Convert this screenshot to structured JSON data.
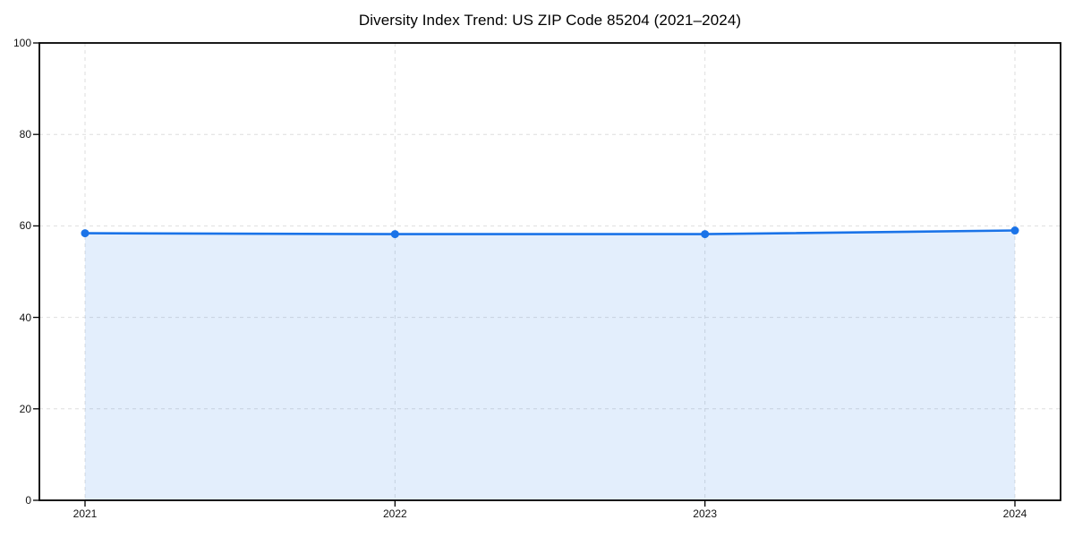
{
  "colors": {
    "line": "#1a73e8",
    "marker": "#1a73e8",
    "fill": "#1a73e8",
    "fill_opacity": 0.12,
    "grid": "#dedede",
    "axis": "#000000",
    "tick_text": "#141414",
    "background": "#ffffff"
  },
  "chart_data": {
    "type": "area",
    "title": "Diversity Index Trend: US ZIP Code 85204 (2021–2024)",
    "categories": [
      "2021",
      "2022",
      "2023",
      "2024"
    ],
    "series": [
      {
        "name": "Diversity Index",
        "values": [
          58.4,
          58.2,
          58.2,
          59.0
        ]
      }
    ],
    "xlabel": "",
    "ylabel": "",
    "ylim": [
      0,
      100
    ],
    "yticks": [
      0,
      20,
      40,
      60,
      80,
      100
    ],
    "grid": true,
    "grid_style": "dashed",
    "legend_position": "none",
    "marker": "circle",
    "fill_to_zero": true
  }
}
